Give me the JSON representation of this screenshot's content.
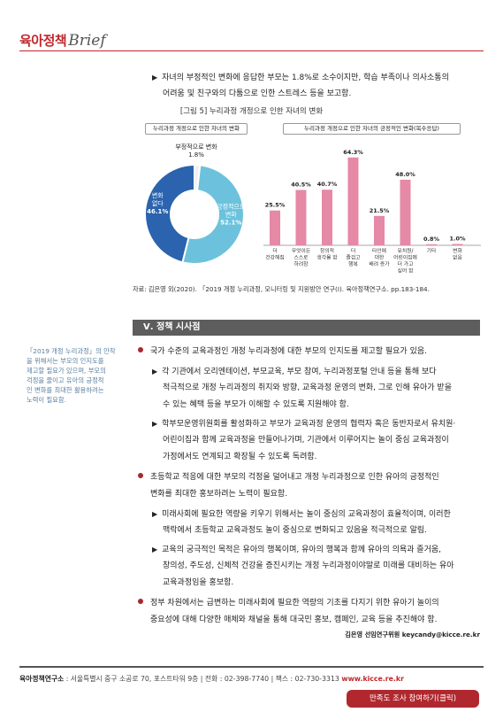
{
  "header": {
    "brand_ko": "육아정책",
    "brand_en": "Brief"
  },
  "intro": {
    "line1": "자녀의 부정적인 변화에 응답한 부모는 1.8%로 소수이지만, 학습 부족이나 의사소통의",
    "line2": "어려움 및 친구와의 다툼으로 인한 스트레스 등을 보고함."
  },
  "figure": {
    "title": "[그림 5] 누리과정 개정으로 인한 자녀의 변화"
  },
  "chart_data": [
    {
      "type": "pie",
      "title": "누리과정 개정으로 인한 자녀의 변화",
      "slices": [
        {
          "label": "부정적으로 변화",
          "value": 1.8,
          "value_label": "1.8%",
          "color": "#f0f0f0"
        },
        {
          "label": "긍정적으로 변화",
          "value": 52.1,
          "value_label": "52.1%",
          "color": "#6cc2dc"
        },
        {
          "label": "변화 없다",
          "value": 46.1,
          "value_label": "46.1%",
          "color": "#2b63ae"
        }
      ]
    },
    {
      "type": "bar",
      "title": "누리과정 개정으로 인한 자녀의 긍정적인 변화(복수응답)",
      "categories": [
        [
          "더",
          "건강해짐"
        ],
        [
          "무엇이든",
          "스스로",
          "하려함"
        ],
        [
          "창의적",
          "생각을 함"
        ],
        [
          "더",
          "즐겁고",
          "행복"
        ],
        [
          "타인에",
          "대한",
          "배려 증가"
        ],
        [
          "유치원/",
          "어린이집에",
          "더 가고",
          "싶어 함"
        ],
        [
          "기타"
        ],
        [
          "변화",
          "없음"
        ]
      ],
      "values": [
        25.5,
        40.5,
        40.7,
        64.3,
        21.5,
        48.0,
        0.8,
        1.0
      ],
      "value_labels": [
        "25.5%",
        "40.5%",
        "40.7%",
        "64.3%",
        "21.5%",
        "48.0%",
        "0.8%",
        "1.0%"
      ],
      "ylim": [
        0,
        70
      ],
      "bar_color": "#e589a6",
      "grid": false
    }
  ],
  "source": "자료: 김은영 외(2020). 「2019 개정 누리과정, 모니터링 및 지원방안 연구(Ⅰ). 육아정책연구소. pp.183-184.",
  "section": {
    "title": "Ⅴ. 정책 시사점"
  },
  "sidebar_note": {
    "lines": [
      "「2019 개정 누리과정」의 안착",
      "을 위해서는 부모의 인지도를",
      "제고할 필요가 있으며, 부모의",
      "걱정을 줄이고 유아의 긍정적",
      "인 변화를 최대한 활용하려는",
      "노력이 필요함."
    ]
  },
  "policy": {
    "b1": "국가 수준의 교육과정인 개정 누리과정에 대한 부모의 인지도를 제고할 필요가 있음.",
    "b1_s1_l1": "각 기관에서 오리엔테이션, 부모교육, 부모 참여, 누리과정포털 안내 등을 통해 보다",
    "b1_s1_l2": "적극적으로 개정 누리과정의 취지와 방향, 교육과정 운영의 변화, 그로 인해 유아가 받을",
    "b1_s1_l3": "수 있는 혜택 등을 부모가 이해할 수 있도록 지원해야 함.",
    "b1_s2_l1": "학부모운영위원회를 활성화하고 부모가 교육과정 운영의 협력자 혹은 동반자로서 유치원·",
    "b1_s2_l2": "어린이집과 함께 교육과정을 만들어나가며, 기관에서 이루어지는 놀이 중심 교육과정이",
    "b1_s2_l3": "가정에서도 연계되고 확장될 수 있도록 독려함.",
    "b2_l1": "초등학교 적응에 대한 부모의 걱정을 덜어내고 개정 누리과정으로 인한 유아의 긍정적인",
    "b2_l2": "변화를 최대한 홍보하려는 노력이 필요함.",
    "b2_s1_l1": "미래사회에 필요한 역량을 키우기 위해서는 놀이 중심의 교육과정이 효율적이며, 이러한",
    "b2_s1_l2": "맥락에서 초등학교 교육과정도 놀이 중심으로 변화되고 있음을 적극적으로 알림.",
    "b2_s2_l1": "교육의 궁극적인 목적은 유아의 행복이며, 유아의 행복과 함께 유아의 의욕과 즐거움,",
    "b2_s2_l2": "창의성, 주도성, 신체적 건강을 증진시키는 개정 누리과정이야말로 미래를 대비하는 유아",
    "b2_s2_l3": "교육과정임을 홍보함.",
    "b3_l1": "정부 차원에서는 급변하는 미래사회에 필요한 역량의 기초를 다지기 위한 유아기 놀이의",
    "b3_l2": "중요성에 대해 다양한 매체와 채널을 통해 대국민 홍보, 캠페인, 교육 등을 추진해야 함."
  },
  "author": "김은영  선임연구위원  keycandy@kicce.re.kr",
  "footer": {
    "org": "육아정책연구소",
    "address": " : 서울특별시 중구 소공로 70, 포스트타워 9층 | 전화 : 02-398-7740 | 팩스 : 02-730-3313 ",
    "url": "www.kicce.re.kr"
  },
  "survey_button": {
    "label": "만족도 조사 참여하기(클릭)"
  }
}
